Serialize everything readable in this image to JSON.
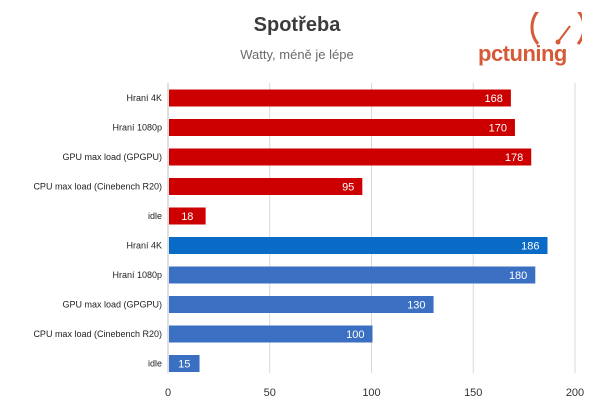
{
  "chart_data": {
    "type": "bar",
    "orientation": "horizontal",
    "title": "Spotřeba",
    "subtitle": "Watty, méně je lépe",
    "xlim": [
      0,
      200
    ],
    "xticks": [
      "0",
      "50",
      "100",
      "150",
      "200"
    ],
    "grid": true,
    "bars": [
      {
        "label": "Hraní 4K",
        "value": 168,
        "color": "#cc0000"
      },
      {
        "label": "Hraní 1080p",
        "value": 170,
        "color": "#cc0000"
      },
      {
        "label": "GPU max load (GPGPU)",
        "value": 178,
        "color": "#cc0000"
      },
      {
        "label": "CPU max load (Cinebench R20)",
        "value": 95,
        "color": "#cc0000"
      },
      {
        "label": "idle",
        "value": 18,
        "color": "#cc0000"
      },
      {
        "label": "Hraní 4K",
        "value": 186,
        "color": "#0a6bc6"
      },
      {
        "label": "Hraní 1080p",
        "value": 180,
        "color": "#3a6fc1"
      },
      {
        "label": "GPU max load (GPGPU)",
        "value": 130,
        "color": "#3a6fc1"
      },
      {
        "label": "CPU max load (Cinebench R20)",
        "value": 100,
        "color": "#3a6fc1"
      },
      {
        "label": "idle",
        "value": 15,
        "color": "#3a6fc1"
      }
    ]
  },
  "logo": {
    "text": "pctuning",
    "color": "#d65a37"
  }
}
